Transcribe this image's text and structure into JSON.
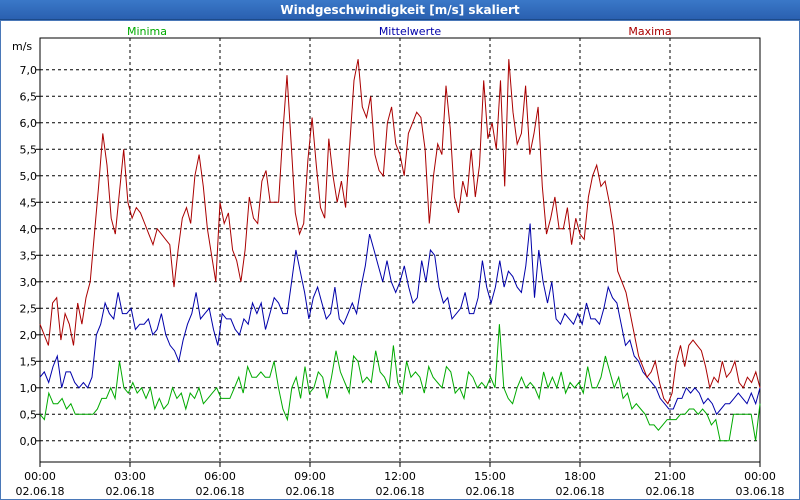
{
  "window": {
    "title": "Windgeschwindigkeit [m/s] skaliert"
  },
  "chart_data": {
    "type": "line",
    "title": "Windgeschwindigkeit [m/s] skaliert",
    "ylabel": "m/s",
    "xlabel": "",
    "ylim": [
      -0.4,
      7.6
    ],
    "xlim": [
      0,
      24
    ],
    "grid": true,
    "y_ticks": [
      "0,0",
      "0,5",
      "1,0",
      "1,5",
      "2,0",
      "2,5",
      "3,0",
      "3,5",
      "4,0",
      "4,5",
      "5,0",
      "5,5",
      "6,0",
      "6,5",
      "7,0"
    ],
    "y_tick_values": [
      0,
      0.5,
      1,
      1.5,
      2,
      2.5,
      3,
      3.5,
      4,
      4.5,
      5,
      5.5,
      6,
      6.5,
      7
    ],
    "x_ticks": [
      {
        "time": "00:00",
        "date": "02.06.18"
      },
      {
        "time": "03:00",
        "date": "02.06.18"
      },
      {
        "time": "06:00",
        "date": "02.06.18"
      },
      {
        "time": "09:00",
        "date": "02.06.18"
      },
      {
        "time": "12:00",
        "date": "02.06.18"
      },
      {
        "time": "15:00",
        "date": "02.06.18"
      },
      {
        "time": "18:00",
        "date": "02.06.18"
      },
      {
        "time": "21:00",
        "date": "02.06.18"
      },
      {
        "time": "00:00",
        "date": "03.06.18"
      }
    ],
    "series": [
      {
        "name": "Minima",
        "color": "#00aa00",
        "values": [
          0.5,
          0.4,
          0.9,
          0.7,
          0.7,
          0.8,
          0.6,
          0.7,
          0.5,
          0.5,
          0.5,
          0.5,
          0.5,
          0.6,
          0.8,
          0.8,
          1.0,
          0.8,
          1.5,
          1.0,
          0.9,
          1.1,
          0.9,
          1.0,
          0.8,
          1.0,
          0.6,
          0.8,
          0.6,
          0.7,
          1.0,
          0.8,
          0.9,
          0.6,
          0.9,
          0.8,
          1.0,
          0.7,
          0.8,
          0.9,
          1.0,
          0.8,
          0.8,
          0.8,
          1.0,
          1.2,
          0.9,
          1.4,
          1.2,
          1.2,
          1.3,
          1.2,
          1.2,
          1.5,
          1.0,
          0.6,
          0.4,
          1.0,
          1.2,
          0.8,
          1.4,
          0.9,
          1.0,
          1.3,
          1.2,
          0.8,
          1.2,
          1.7,
          1.3,
          1.1,
          0.9,
          1.6,
          1.5,
          1.1,
          1.2,
          1.1,
          1.7,
          1.3,
          1.2,
          1.0,
          1.8,
          1.1,
          0.9,
          1.5,
          1.2,
          1.3,
          1.2,
          0.9,
          1.4,
          1.2,
          1.1,
          1.0,
          1.4,
          1.3,
          0.9,
          1.0,
          0.8,
          1.3,
          1.2,
          1.0,
          1.1,
          1.0,
          1.2,
          1.0,
          2.2,
          1.0,
          0.8,
          0.7,
          1.0,
          1.2,
          1.0,
          1.1,
          1.0,
          0.8,
          1.3,
          1.0,
          1.2,
          1.0,
          1.3,
          0.9,
          1.1,
          1.0,
          1.1,
          0.9,
          1.4,
          1.0,
          1.0,
          1.2,
          1.6,
          1.3,
          1.0,
          1.2,
          0.8,
          0.9,
          0.6,
          0.7,
          0.6,
          0.5,
          0.3,
          0.3,
          0.2,
          0.3,
          0.4,
          0.4,
          0.4,
          0.5,
          0.5,
          0.6,
          0.6,
          0.5,
          0.6,
          0.5,
          0.3,
          0.4,
          0.0,
          0.0,
          0.0,
          0.5,
          0.5,
          0.5,
          0.5,
          0.5,
          0.0,
          0.7
        ]
      },
      {
        "name": "Mittelwerte",
        "color": "#0000aa",
        "values": [
          1.2,
          1.3,
          1.1,
          1.4,
          1.6,
          1.0,
          1.3,
          1.3,
          1.1,
          1.0,
          1.1,
          1.0,
          1.2,
          2.0,
          2.2,
          2.6,
          2.4,
          2.3,
          2.8,
          2.4,
          2.4,
          2.5,
          2.1,
          2.2,
          2.2,
          2.3,
          2.0,
          2.1,
          2.4,
          2.0,
          1.8,
          1.7,
          1.5,
          1.9,
          2.2,
          2.4,
          2.8,
          2.3,
          2.4,
          2.5,
          2.1,
          1.8,
          2.4,
          2.3,
          2.3,
          2.1,
          2.0,
          2.3,
          2.2,
          2.6,
          2.4,
          2.6,
          2.1,
          2.4,
          2.7,
          2.6,
          2.4,
          2.4,
          3.0,
          3.6,
          3.2,
          2.8,
          2.3,
          2.7,
          2.9,
          2.6,
          2.3,
          2.4,
          2.9,
          2.3,
          2.2,
          2.4,
          2.6,
          2.4,
          2.9,
          3.3,
          3.9,
          3.6,
          3.3,
          3.0,
          3.4,
          3.0,
          2.8,
          3.0,
          3.3,
          2.9,
          2.6,
          2.7,
          3.4,
          3.0,
          3.6,
          3.5,
          2.9,
          2.6,
          2.7,
          2.3,
          2.4,
          2.5,
          2.8,
          2.4,
          2.4,
          2.7,
          3.4,
          2.9,
          2.6,
          2.9,
          3.4,
          2.9,
          3.2,
          3.1,
          2.9,
          2.8,
          3.3,
          4.1,
          2.7,
          3.6,
          3.0,
          2.6,
          3.0,
          2.3,
          2.2,
          2.4,
          2.3,
          2.2,
          2.4,
          2.2,
          2.6,
          2.3,
          2.3,
          2.2,
          2.5,
          2.9,
          2.7,
          2.6,
          2.2,
          1.8,
          1.9,
          1.6,
          1.5,
          1.3,
          1.2,
          1.1,
          1.0,
          0.8,
          0.7,
          0.6,
          0.6,
          0.8,
          0.8,
          1.0,
          0.9,
          1.0,
          0.9,
          0.7,
          0.8,
          0.7,
          0.5,
          0.6,
          0.7,
          0.7,
          0.8,
          0.9,
          0.8,
          0.7,
          0.9,
          0.7,
          1.0
        ]
      },
      {
        "name": "Maxima",
        "color": "#aa0000",
        "values": [
          2.2,
          2.0,
          1.8,
          2.6,
          2.7,
          1.9,
          2.4,
          2.2,
          1.8,
          2.6,
          2.2,
          2.7,
          3.0,
          3.9,
          4.8,
          5.8,
          5.2,
          4.2,
          3.9,
          4.7,
          5.5,
          4.5,
          4.2,
          4.4,
          4.3,
          4.1,
          3.9,
          3.7,
          4.0,
          3.9,
          3.8,
          3.7,
          2.9,
          3.6,
          4.2,
          4.4,
          4.1,
          5.0,
          5.4,
          4.8,
          4.0,
          3.5,
          3.0,
          4.5,
          4.1,
          4.3,
          3.6,
          3.4,
          3.0,
          3.6,
          4.6,
          4.2,
          4.1,
          4.9,
          5.1,
          4.5,
          4.5,
          4.5,
          5.8,
          6.9,
          5.6,
          4.3,
          3.9,
          4.1,
          5.3,
          6.1,
          5.2,
          4.4,
          4.2,
          5.7,
          5.0,
          4.5,
          4.9,
          4.4,
          5.6,
          6.8,
          7.2,
          6.3,
          6.1,
          6.5,
          5.4,
          5.1,
          5.0,
          6.0,
          6.3,
          5.6,
          5.4,
          5.0,
          5.8,
          6.0,
          6.2,
          6.1,
          5.5,
          4.1,
          5.0,
          5.6,
          5.4,
          6.7,
          5.9,
          4.6,
          4.3,
          4.9,
          4.6,
          5.5,
          4.6,
          5.2,
          6.8,
          5.7,
          6.0,
          5.5,
          6.8,
          4.8,
          7.2,
          6.2,
          5.6,
          5.8,
          6.7,
          5.4,
          5.8,
          6.3,
          4.8,
          3.9,
          4.2,
          4.6,
          4.0,
          4.0,
          4.4,
          3.7,
          4.2,
          3.9,
          3.8,
          4.6,
          5.0,
          5.2,
          4.8,
          4.9,
          4.5,
          4.0,
          3.2,
          3.0,
          2.8,
          2.4,
          2.0,
          1.6,
          1.4,
          1.2,
          1.3,
          1.5,
          1.1,
          0.8,
          0.7,
          0.9,
          1.5,
          1.8,
          1.4,
          1.8,
          1.9,
          1.8,
          1.7,
          1.4,
          1.0,
          1.2,
          1.1,
          1.5,
          1.2,
          1.3,
          1.5,
          1.1,
          1.0,
          1.2,
          1.1,
          1.3,
          1.0
        ]
      }
    ]
  }
}
